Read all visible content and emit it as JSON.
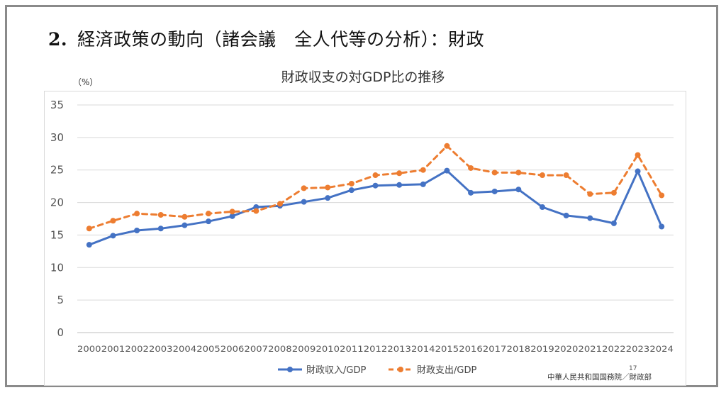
{
  "slide": {
    "heading_number": "2.",
    "heading_text": "経済政策の動向（諸会議　全人代等の分析）：財政",
    "page_number": "17",
    "source": "中華人民共和国国務院／財政部"
  },
  "chart_data": {
    "type": "line",
    "title": "財政収支の対GDP比の推移",
    "unit_label": "（%）",
    "xlabel": "",
    "ylabel": "",
    "ylim": [
      0,
      35
    ],
    "yticks": [
      0,
      5,
      10,
      15,
      20,
      25,
      30,
      35
    ],
    "grid": true,
    "legend_position": "bottom",
    "categories": [
      "2000",
      "2001",
      "2002",
      "2003",
      "2004",
      "2005",
      "2006",
      "2007",
      "2008",
      "2009",
      "2010",
      "2011",
      "2012",
      "2013",
      "2014",
      "2015",
      "2016",
      "2017",
      "2018",
      "2019",
      "2020",
      "2021",
      "2022",
      "2023",
      "2024"
    ],
    "series": [
      {
        "name": "財政収入/GDP",
        "color": "#4472c4",
        "style": "solid",
        "values": [
          13.5,
          14.9,
          15.7,
          16.0,
          16.5,
          17.1,
          17.9,
          19.3,
          19.5,
          20.1,
          20.7,
          21.9,
          22.6,
          22.7,
          22.8,
          24.9,
          21.5,
          21.7,
          22.0,
          19.3,
          18.0,
          17.6,
          16.8,
          24.8,
          16.3
        ]
      },
      {
        "name": "財政支出/GDP",
        "color": "#ed7d31",
        "style": "dashed",
        "values": [
          16.0,
          17.2,
          18.3,
          18.1,
          17.8,
          18.3,
          18.6,
          18.7,
          19.8,
          22.2,
          22.3,
          22.9,
          24.2,
          24.5,
          25.0,
          28.7,
          25.3,
          24.6,
          24.6,
          24.2,
          24.2,
          21.3,
          21.5,
          27.3,
          21.1
        ]
      }
    ]
  }
}
